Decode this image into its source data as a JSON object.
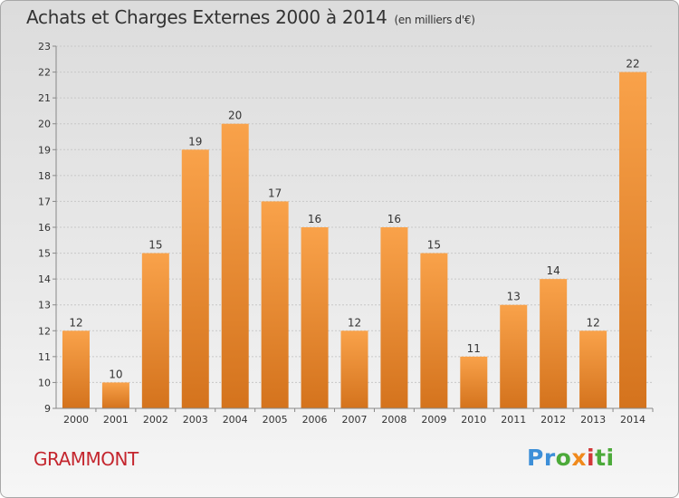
{
  "header": {
    "title": "Achats et Charges Externes 2000 à 2014",
    "subtitle": "(en milliers d'€)"
  },
  "footer": {
    "city": "GRAMMONT",
    "logo": [
      "Pr",
      "o",
      "x",
      "i",
      "ti"
    ]
  },
  "colors": {
    "bar_top": "#f9a24a",
    "bar_bottom": "#d4731d",
    "axis": "#888888",
    "grid": "#c8c8c8",
    "city": "#c4262e"
  },
  "chart_data": {
    "type": "bar",
    "title": "Achats et Charges Externes 2000 à 2014",
    "subtitle": "(en milliers d'€)",
    "categories": [
      "2000",
      "2001",
      "2002",
      "2003",
      "2004",
      "2005",
      "2006",
      "2007",
      "2008",
      "2009",
      "2010",
      "2011",
      "2012",
      "2013",
      "2014"
    ],
    "values": [
      12,
      10,
      15,
      19,
      20,
      17,
      16,
      12,
      16,
      15,
      11,
      13,
      14,
      12,
      22
    ],
    "data_labels": [
      "12",
      "10",
      "15",
      "19",
      "20",
      "17",
      "16",
      "12",
      "16",
      "15",
      "11",
      "13",
      "14",
      "12",
      "22"
    ],
    "yticks": [
      "9",
      "10",
      "11",
      "12",
      "13",
      "14",
      "15",
      "16",
      "17",
      "18",
      "19",
      "20",
      "21",
      "22",
      "23"
    ],
    "ylim": [
      9,
      23
    ],
    "xlabel": "",
    "ylabel": "",
    "grid": true,
    "legend": "none"
  }
}
